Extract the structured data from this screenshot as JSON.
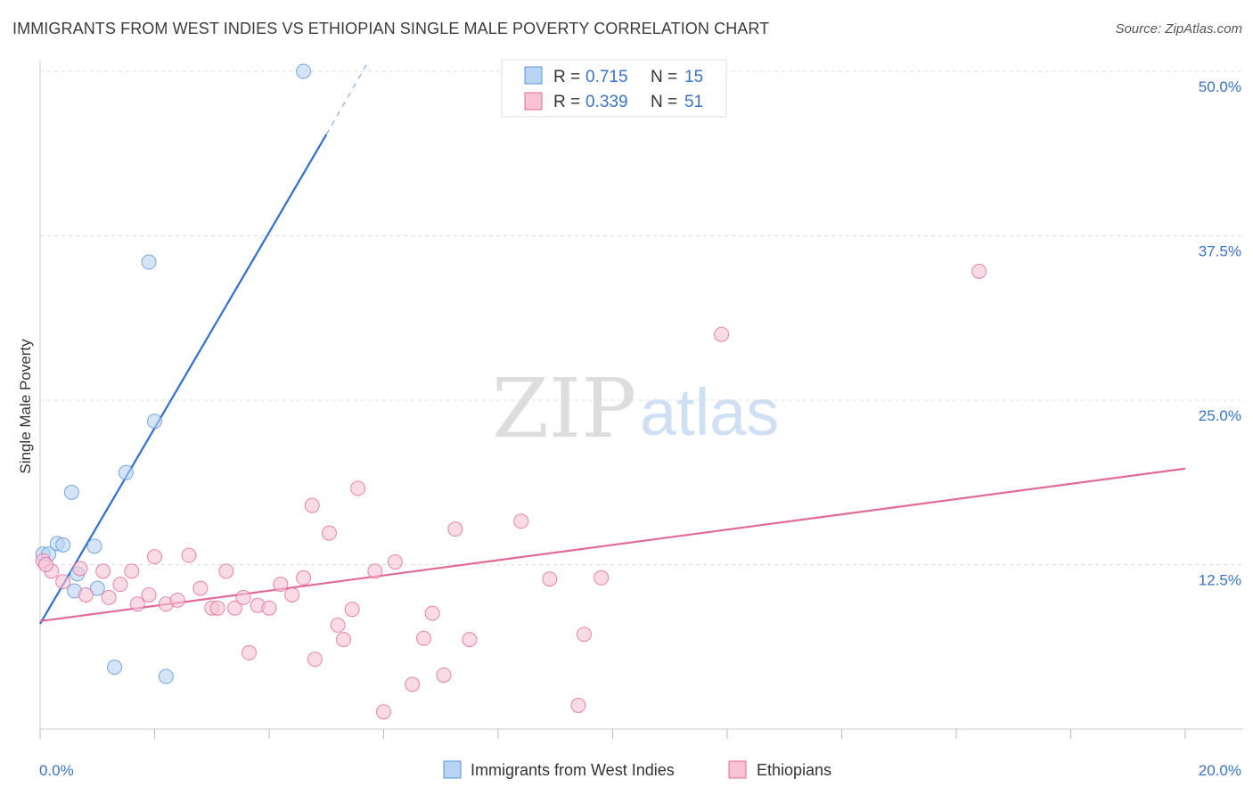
{
  "title": "IMMIGRANTS FROM WEST INDIES VS ETHIOPIAN SINGLE MALE POVERTY CORRELATION CHART",
  "source": "Source: ZipAtlas.com",
  "watermark": {
    "part1": "ZIP",
    "part2": "atlas"
  },
  "colors": {
    "blue": "#5b93d8",
    "blue_fill": "#b9d3f2",
    "pink": "#e06a98",
    "pink_fill": "#f7c3d4",
    "tick": "#3b73c4"
  },
  "legend": {
    "row1": {
      "r_label": "R =",
      "r_value": "0.715",
      "n_label": "N =",
      "n_value": "15"
    },
    "row2": {
      "r_label": "R =",
      "r_value": "0.339",
      "n_label": "N =",
      "n_value": "51"
    }
  },
  "bottom_legend": [
    "Immigrants from West Indies",
    "Ethiopians"
  ],
  "chart_data": {
    "type": "scatter",
    "ylabel": "Single Male Poverty",
    "xlim": [
      0,
      20
    ],
    "ylim": [
      0,
      50
    ],
    "x_tick_labels": [
      "0.0%",
      "20.0%"
    ],
    "y_ticks": [
      12.5,
      25.0,
      37.5,
      50.0
    ],
    "y_tick_labels": [
      "12.5%",
      "25.0%",
      "37.5%",
      "50.0%"
    ],
    "grid": true,
    "series": [
      {
        "name": "Immigrants from West Indies",
        "color": "#5b93d8",
        "points": [
          [
            0.05,
            13.3
          ],
          [
            0.15,
            13.3
          ],
          [
            0.3,
            14.1
          ],
          [
            0.4,
            14.0
          ],
          [
            0.55,
            18.0
          ],
          [
            0.6,
            10.5
          ],
          [
            0.65,
            11.8
          ],
          [
            0.95,
            13.9
          ],
          [
            1.0,
            10.7
          ],
          [
            1.3,
            4.7
          ],
          [
            1.5,
            19.5
          ],
          [
            1.9,
            35.5
          ],
          [
            2.0,
            23.4
          ],
          [
            2.2,
            4.0
          ],
          [
            4.6,
            50.0
          ]
        ],
        "trend": {
          "x0": 0.0,
          "y0": 8.0,
          "x1": 5.0,
          "y1": 45.2,
          "dash_x1": 5.7,
          "dash_y1": 50.5
        }
      },
      {
        "name": "Ethiopians",
        "color": "#e06a98",
        "points": [
          [
            0.05,
            12.8
          ],
          [
            0.2,
            12.0
          ],
          [
            0.4,
            11.2
          ],
          [
            0.7,
            12.2
          ],
          [
            0.8,
            10.2
          ],
          [
            1.1,
            12.0
          ],
          [
            1.2,
            10.0
          ],
          [
            1.4,
            11.0
          ],
          [
            1.6,
            12.0
          ],
          [
            1.7,
            9.5
          ],
          [
            1.9,
            10.2
          ],
          [
            2.0,
            13.1
          ],
          [
            2.2,
            9.5
          ],
          [
            2.4,
            9.8
          ],
          [
            2.6,
            13.2
          ],
          [
            2.8,
            10.7
          ],
          [
            3.0,
            9.2
          ],
          [
            3.1,
            9.2
          ],
          [
            3.25,
            12.0
          ],
          [
            3.4,
            9.2
          ],
          [
            3.55,
            10.0
          ],
          [
            3.65,
            5.8
          ],
          [
            3.8,
            9.4
          ],
          [
            4.0,
            9.2
          ],
          [
            4.2,
            11.0
          ],
          [
            4.4,
            10.2
          ],
          [
            4.6,
            11.5
          ],
          [
            4.75,
            17.0
          ],
          [
            4.8,
            5.3
          ],
          [
            5.05,
            14.9
          ],
          [
            5.2,
            7.9
          ],
          [
            5.3,
            6.8
          ],
          [
            5.45,
            9.1
          ],
          [
            5.55,
            18.3
          ],
          [
            5.85,
            12.0
          ],
          [
            6.0,
            1.3
          ],
          [
            6.2,
            12.7
          ],
          [
            6.5,
            3.4
          ],
          [
            6.7,
            6.9
          ],
          [
            6.85,
            8.8
          ],
          [
            7.05,
            4.1
          ],
          [
            7.25,
            15.2
          ],
          [
            7.5,
            6.8
          ],
          [
            8.4,
            15.8
          ],
          [
            8.9,
            11.4
          ],
          [
            9.4,
            1.8
          ],
          [
            9.5,
            7.2
          ],
          [
            9.8,
            11.5
          ],
          [
            11.9,
            30.0
          ],
          [
            16.4,
            34.8
          ],
          [
            0.1,
            12.5
          ]
        ],
        "trend": {
          "x0": 0.0,
          "y0": 8.2,
          "x1": 20.0,
          "y1": 19.8
        }
      }
    ]
  }
}
